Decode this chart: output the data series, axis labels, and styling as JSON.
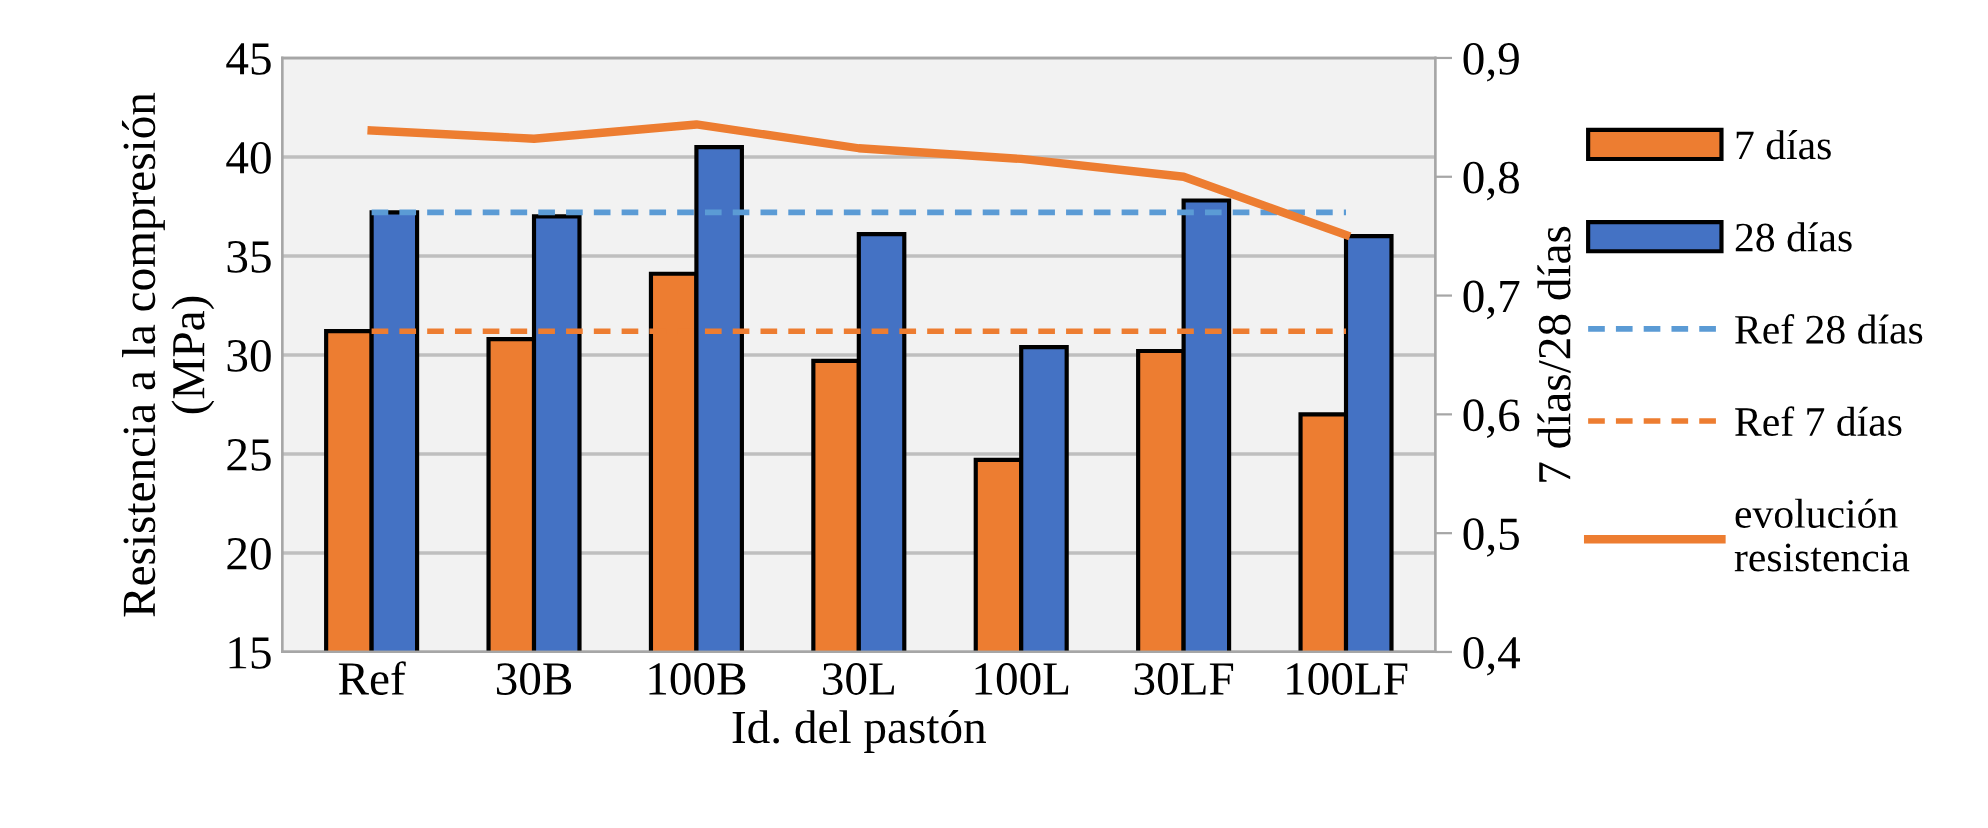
{
  "chart_data": {
    "type": "bar",
    "xlabel": "Id. del pastón",
    "ylabel": "Resistencia a la compresión\n(MPa)",
    "y2label": "7 días/28 días",
    "categories": [
      "Ref",
      "30B",
      "100B",
      "30L",
      "100L",
      "30LF",
      "100LF"
    ],
    "series": [
      {
        "name": "7 días",
        "color": "#ed7d31",
        "values": [
          31.2,
          30.8,
          34.1,
          29.7,
          24.7,
          30.2,
          27.0
        ]
      },
      {
        "name": "28 días",
        "color": "#4472c4",
        "values": [
          37.2,
          37.0,
          40.5,
          36.1,
          30.4,
          37.8,
          36.0
        ]
      },
      {
        "name": "Ref 28 días",
        "type": "line",
        "line_style": "dashed",
        "color": "#5b9bd5",
        "values": [
          37.2,
          37.2,
          37.2,
          37.2,
          37.2,
          37.2,
          37.2
        ]
      },
      {
        "name": "Ref 7 días",
        "type": "line",
        "line_style": "dashed",
        "color": "#ed7d31",
        "values": [
          31.2,
          31.2,
          31.2,
          31.2,
          31.2,
          31.2,
          31.2
        ]
      },
      {
        "name": "evolución\nresistencia",
        "type": "line",
        "axis": "y2",
        "line_style": "solid",
        "color": "#ed7d31",
        "values": [
          0.839,
          0.832,
          0.844,
          0.824,
          0.815,
          0.8,
          0.751
        ]
      }
    ],
    "ylim": [
      15,
      45
    ],
    "yticks": [
      15,
      20,
      25,
      30,
      35,
      40,
      45
    ],
    "y2lim": [
      0.4,
      0.9
    ],
    "y2ticks": [
      {
        "value": 0.4,
        "label": "0,4"
      },
      {
        "value": 0.5,
        "label": "0,5"
      },
      {
        "value": 0.6,
        "label": "0,6"
      },
      {
        "value": 0.7,
        "label": "0,7"
      },
      {
        "value": 0.8,
        "label": "0,8"
      },
      {
        "value": 0.9,
        "label": "0,9"
      }
    ],
    "grid": "y",
    "legend": "right"
  }
}
